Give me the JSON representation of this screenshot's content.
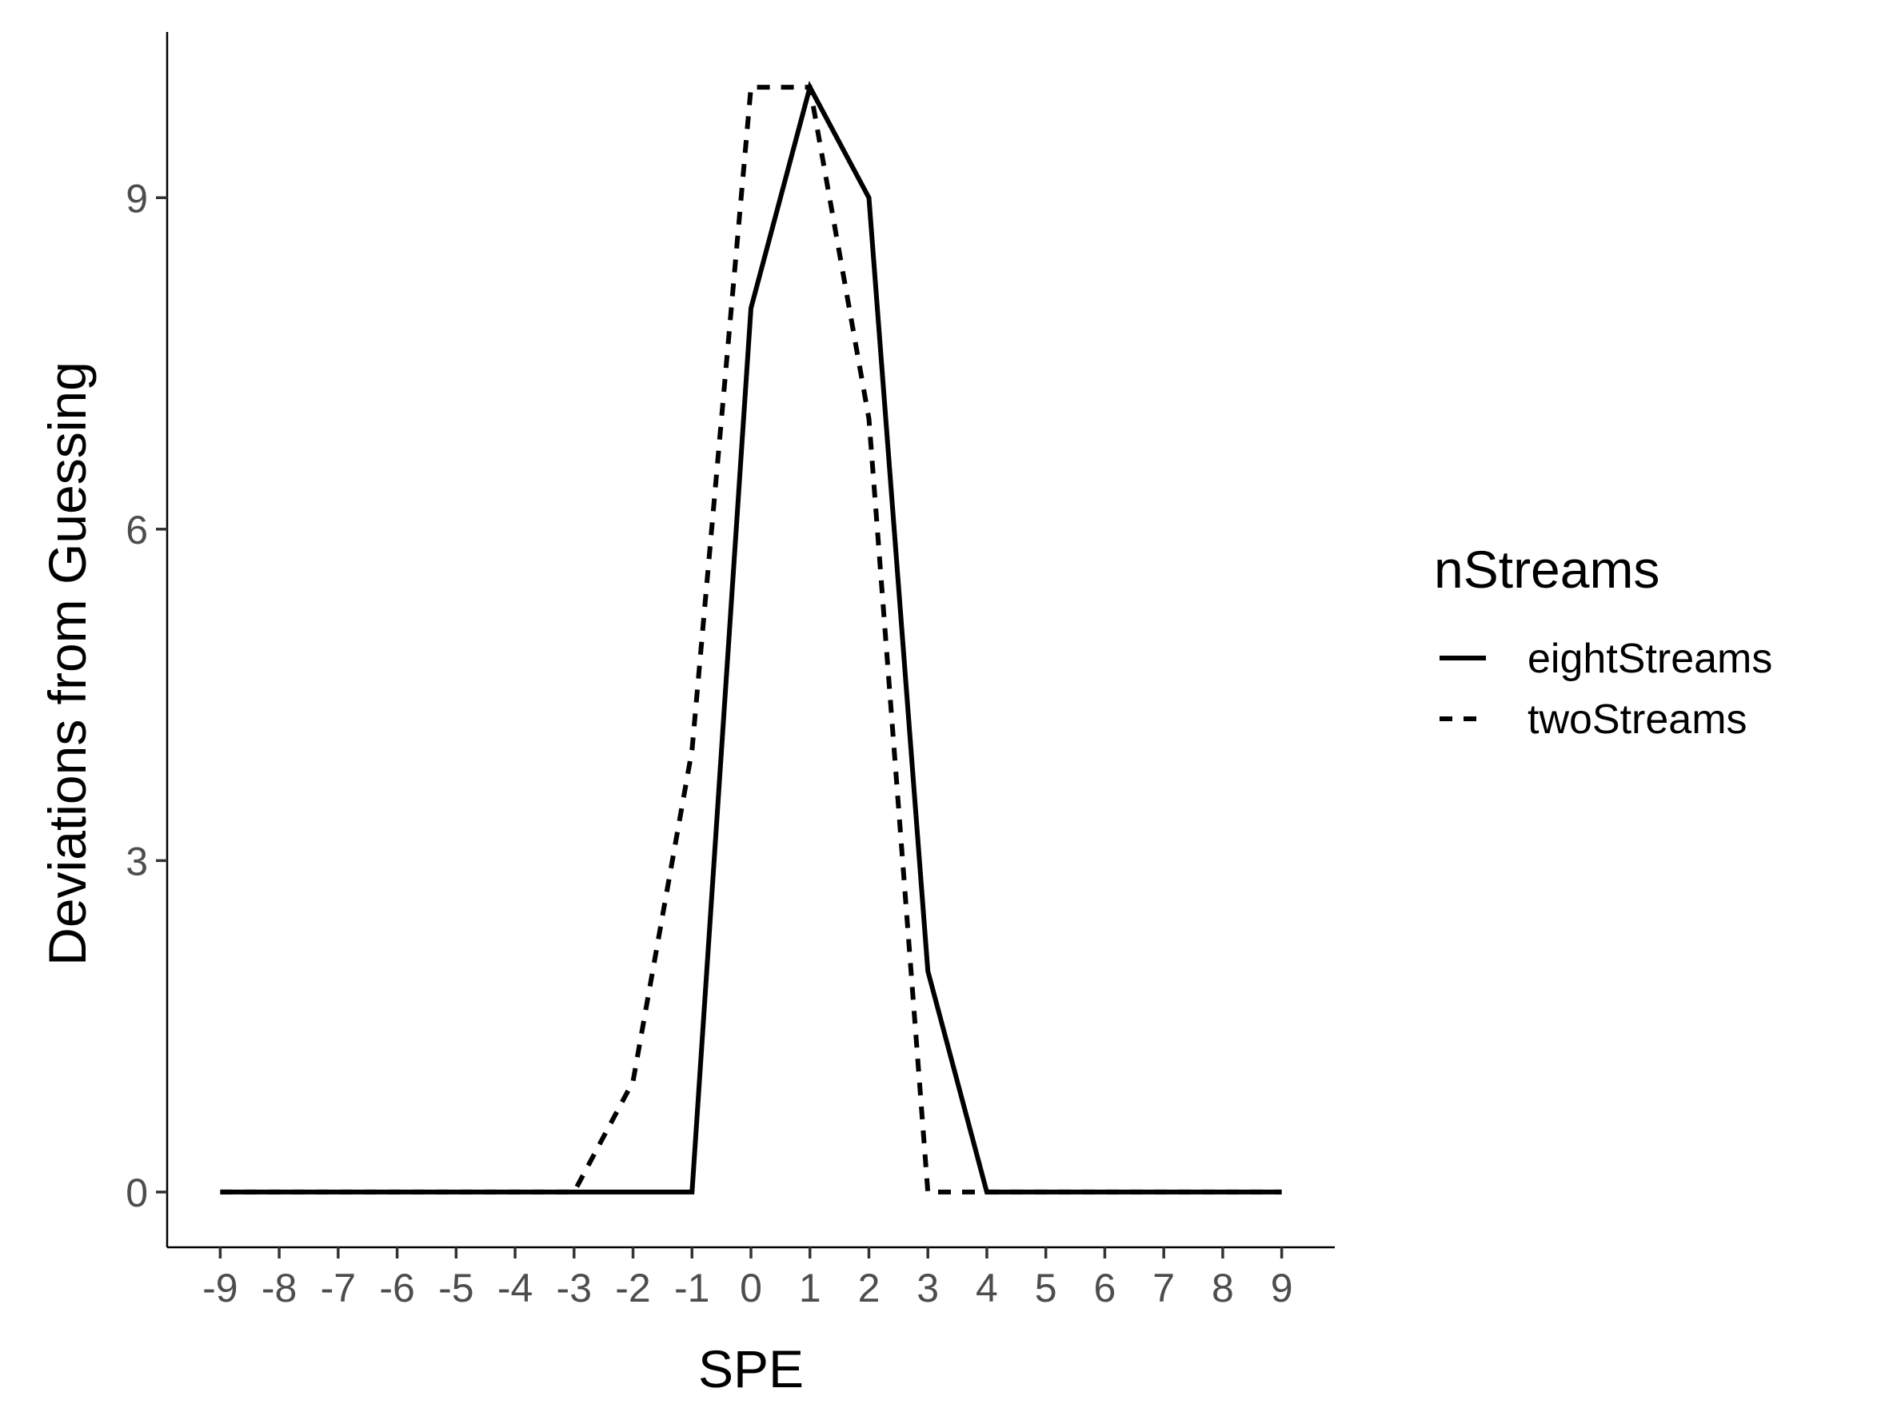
{
  "chart_data": {
    "type": "line",
    "xlabel": "SPE",
    "ylabel": "Deviations from Guessing",
    "x": [
      -9,
      -8,
      -7,
      -6,
      -5,
      -4,
      -3,
      -2,
      -1,
      0,
      1,
      2,
      3,
      4,
      5,
      6,
      7,
      8,
      9
    ],
    "x_tick_labels": [
      "-9",
      "-8",
      "-7",
      "-6",
      "-5",
      "-4",
      "-3",
      "-2",
      "-1",
      "0",
      "1",
      "2",
      "3",
      "4",
      "5",
      "6",
      "7",
      "8",
      "9"
    ],
    "y_ticks": [
      0,
      3,
      6,
      9
    ],
    "y_tick_labels": [
      "0",
      "3",
      "6",
      "9"
    ],
    "xlim": [
      -9.9,
      9.9
    ],
    "ylim": [
      -0.5,
      10.5
    ],
    "grid": false,
    "legend": {
      "title": "nStreams",
      "position": "right"
    },
    "series": [
      {
        "name": "eightStreams",
        "line_style": "solid",
        "color": "#000000",
        "values": [
          0,
          0,
          0,
          0,
          0,
          0,
          0,
          0,
          0,
          8,
          10,
          9,
          2,
          0,
          0,
          0,
          0,
          0,
          0
        ]
      },
      {
        "name": "twoStreams",
        "line_style": "dashed",
        "color": "#000000",
        "values": [
          0,
          0,
          0,
          0,
          0,
          0,
          0,
          1,
          4,
          10,
          10,
          7,
          0,
          0,
          0,
          0,
          0,
          0,
          0
        ]
      }
    ]
  }
}
